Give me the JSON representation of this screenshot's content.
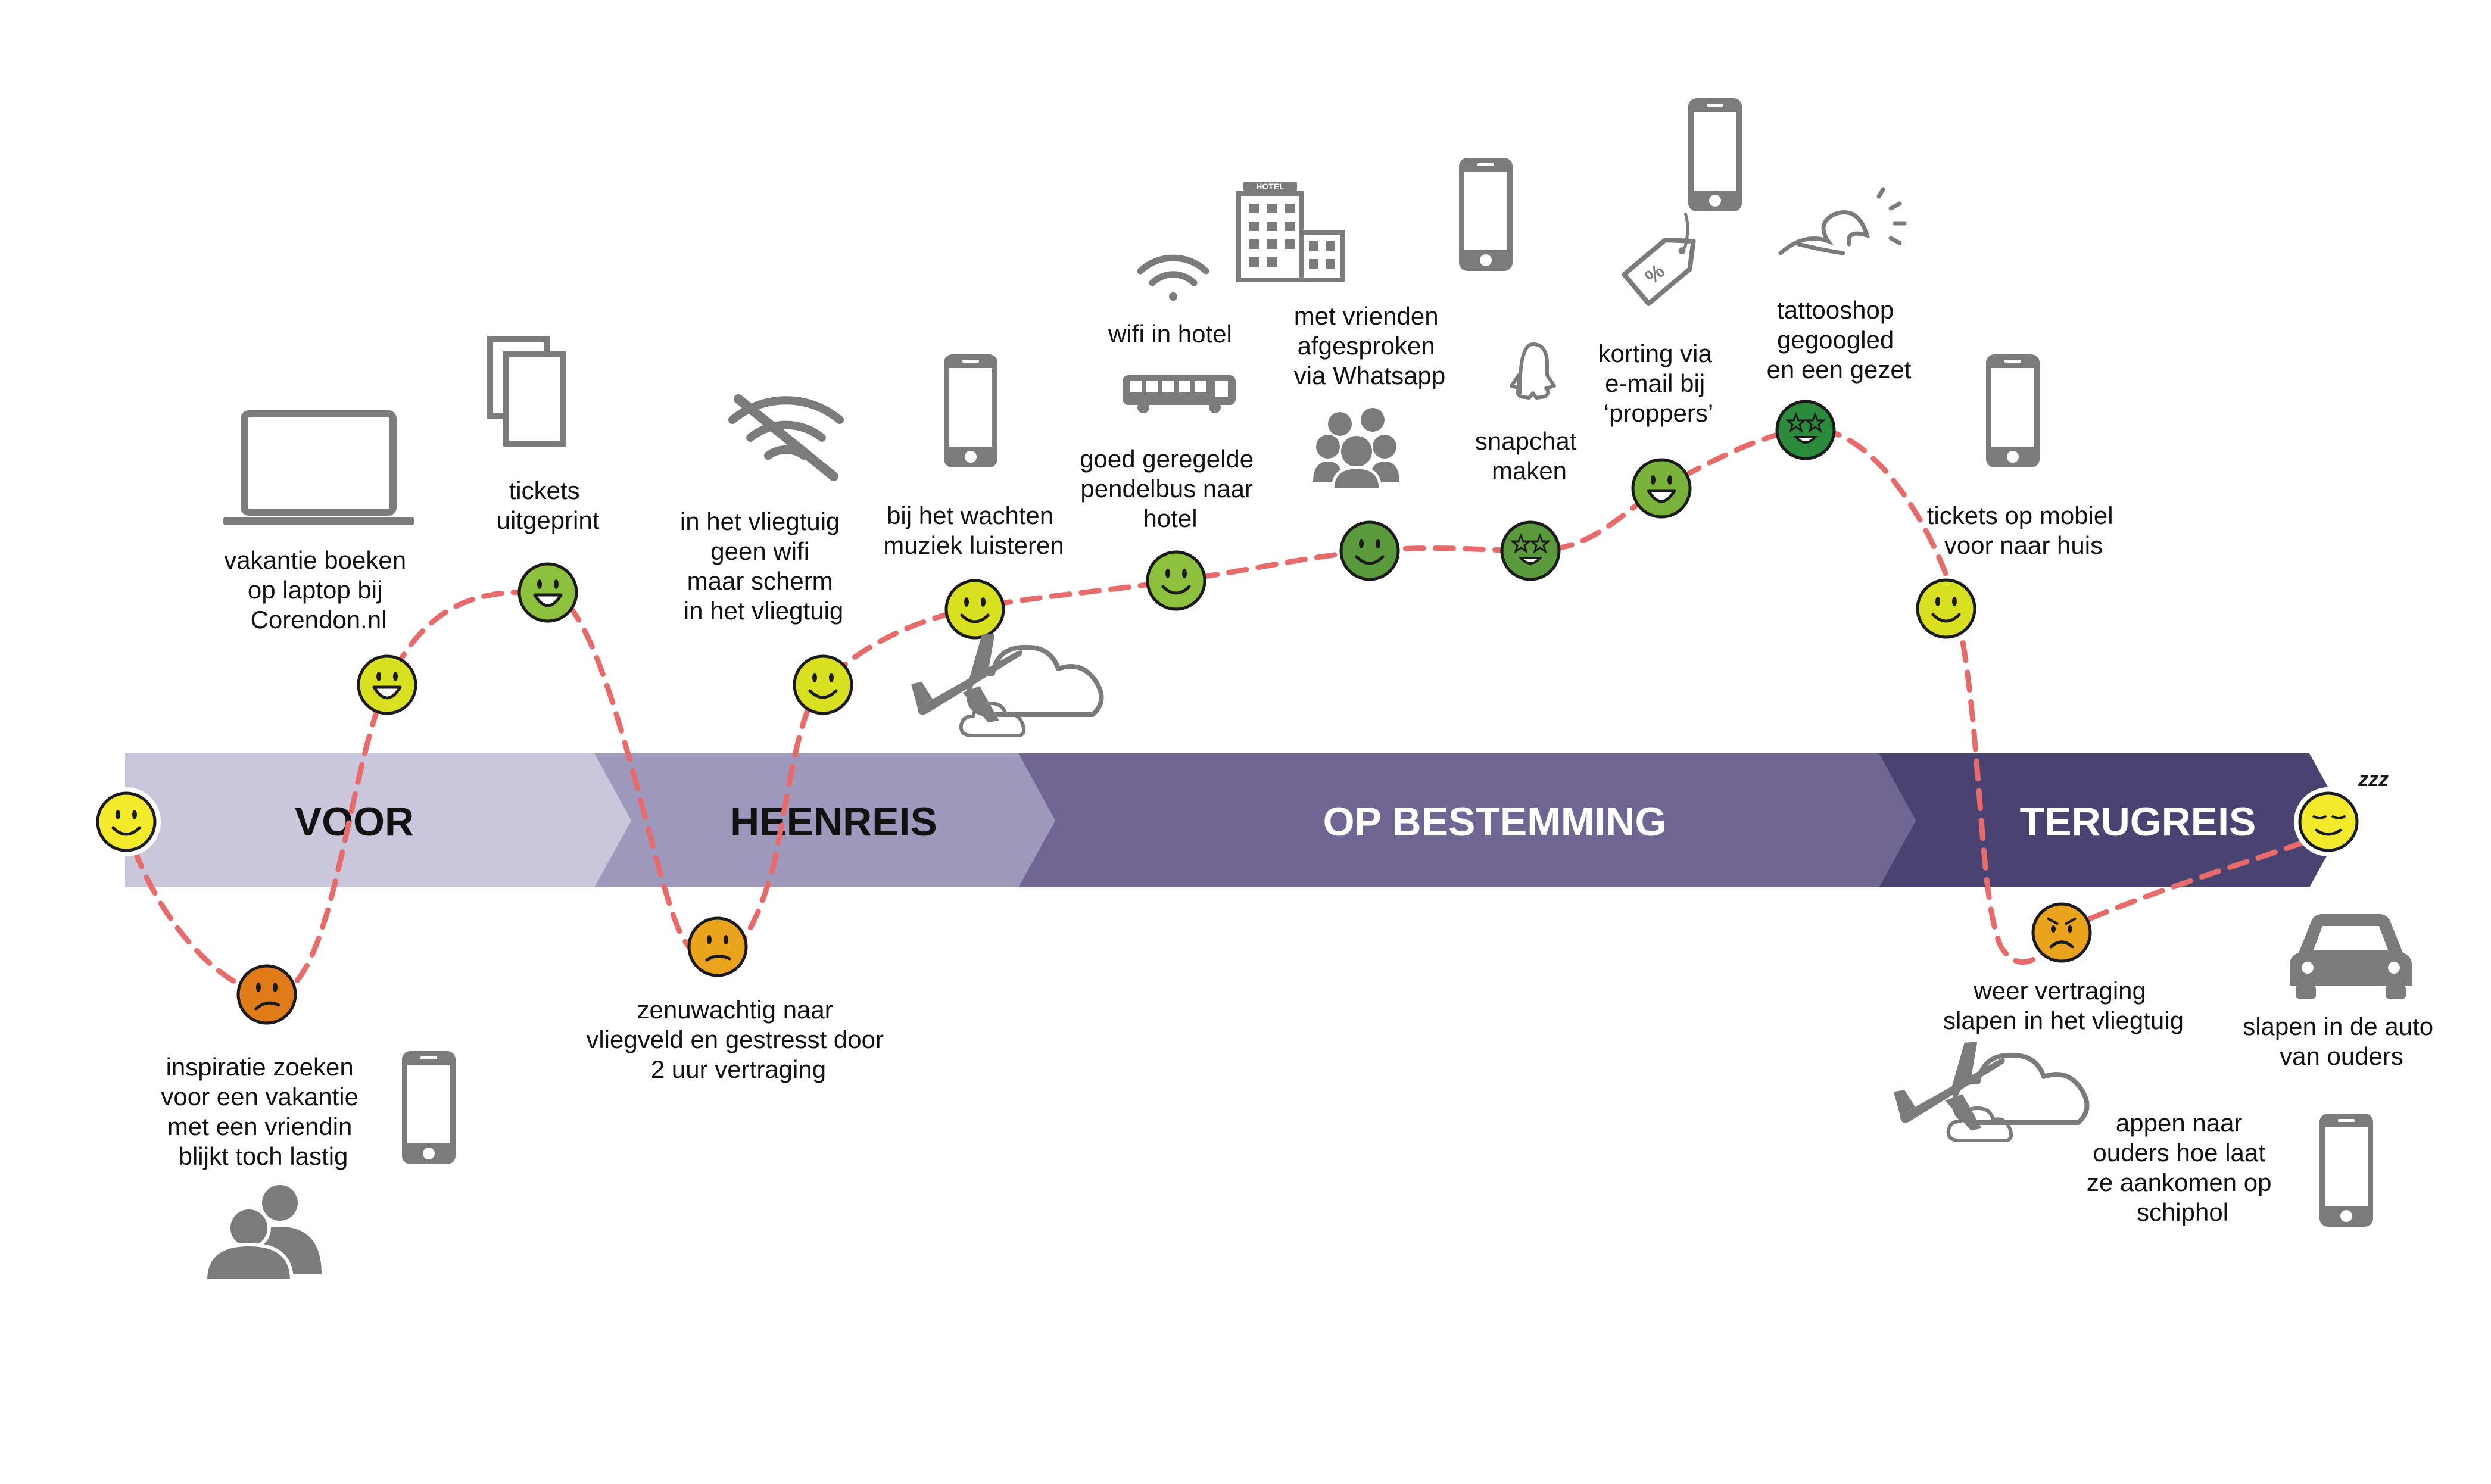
{
  "phases": [
    {
      "label": "VOOR",
      "color": "#cac6dc",
      "text_color": "#111111"
    },
    {
      "label": "HEENREIS",
      "color": "#9f98bd",
      "text_color": "#111111"
    },
    {
      "label": "OP BESTEMMING",
      "color": "#6f6693",
      "text_color": "#ffffff"
    },
    {
      "label": "TERUGREIS",
      "color": "#4a4271",
      "text_color": "#ffffff"
    }
  ],
  "moods": [
    {
      "id": "start",
      "mood": "happy",
      "color": "#f2ea2a"
    },
    {
      "id": "inspiratie",
      "mood": "sad",
      "color": "#e07b1a"
    },
    {
      "id": "vakantie",
      "mood": "laugh",
      "color": "#d9e020"
    },
    {
      "id": "tickets",
      "mood": "laugh",
      "color": "#8dc03c"
    },
    {
      "id": "zenuwachtig",
      "mood": "sad",
      "color": "#e9a31c"
    },
    {
      "id": "vliegtuig",
      "mood": "happy",
      "color": "#d9e020"
    },
    {
      "id": "muziek",
      "mood": "happy",
      "color": "#d9e020"
    },
    {
      "id": "pendelbus",
      "mood": "happy",
      "color": "#8dc03c"
    },
    {
      "id": "whatsapp",
      "mood": "happy",
      "color": "#5a9a3c"
    },
    {
      "id": "snapchat",
      "mood": "star",
      "color": "#5a9a3c"
    },
    {
      "id": "korting",
      "mood": "laugh",
      "color": "#7ab33c"
    },
    {
      "id": "tattooshop",
      "mood": "star",
      "color": "#2c8a3c"
    },
    {
      "id": "mobiel",
      "mood": "happy",
      "color": "#d9e020"
    },
    {
      "id": "vertraging",
      "mood": "angry",
      "color": "#e9a31c"
    },
    {
      "id": "end",
      "mood": "sleep",
      "color": "#f2ea2a"
    }
  ],
  "captions": {
    "inspiratie": [
      "inspiratie zoeken",
      "voor een vakantie",
      "met een vriendin",
      "blijkt toch lastig"
    ],
    "vakantie": [
      "vakantie boeken",
      "op laptop bij",
      "Corendon.nl"
    ],
    "tickets": [
      "tickets",
      "uitgeprint"
    ],
    "zenuwachtig": [
      "zenuwachtig naar",
      "vliegveld en gestresst door",
      "2 uur vertraging"
    ],
    "vliegtuig": [
      "in het vliegtuig",
      "geen wifi",
      "maar scherm",
      "in het vliegtuig"
    ],
    "muziek": [
      "bij het wachten",
      "muziek luisteren"
    ],
    "wifi": [
      "wifi in hotel"
    ],
    "pendelbus": [
      "goed geregelde",
      "pendelbus naar",
      "hotel"
    ],
    "whatsapp": [
      "met vrienden",
      "afgesproken",
      "via Whatsapp"
    ],
    "snapchat": [
      "snapchat",
      "maken"
    ],
    "korting": [
      "korting via",
      "e-mail bij",
      "‘proppers’"
    ],
    "tattooshop": [
      "tattooshop",
      "gegoogled",
      "en een gezet"
    ],
    "mobiel": [
      "tickets op mobiel",
      "voor naar huis"
    ],
    "vertraging": [
      "weer vertraging",
      "slapen in het vliegtuig"
    ],
    "auto": [
      "slapen in de auto",
      "van ouders"
    ],
    "appen": [
      "appen naar",
      "ouders hoe laat",
      "ze aankomen op",
      "schiphol"
    ]
  },
  "icons": {
    "hotel_sign": "HOTEL",
    "sleep_marks": "zzz",
    "names": [
      "laptop-icon",
      "documents-icon",
      "smartphone-icon",
      "people-icon",
      "no-wifi-icon",
      "airplane-icon",
      "cloud-icon",
      "wifi-icon",
      "bus-icon",
      "hotel-icon",
      "group-icon",
      "snapchat-icon",
      "price-tag-icon",
      "wave-icon",
      "car-icon"
    ]
  },
  "colors": {
    "journey_line": "#e86b6b",
    "icon_gray": "#7b7b7b",
    "face_outline": "#1a1a1a"
  }
}
